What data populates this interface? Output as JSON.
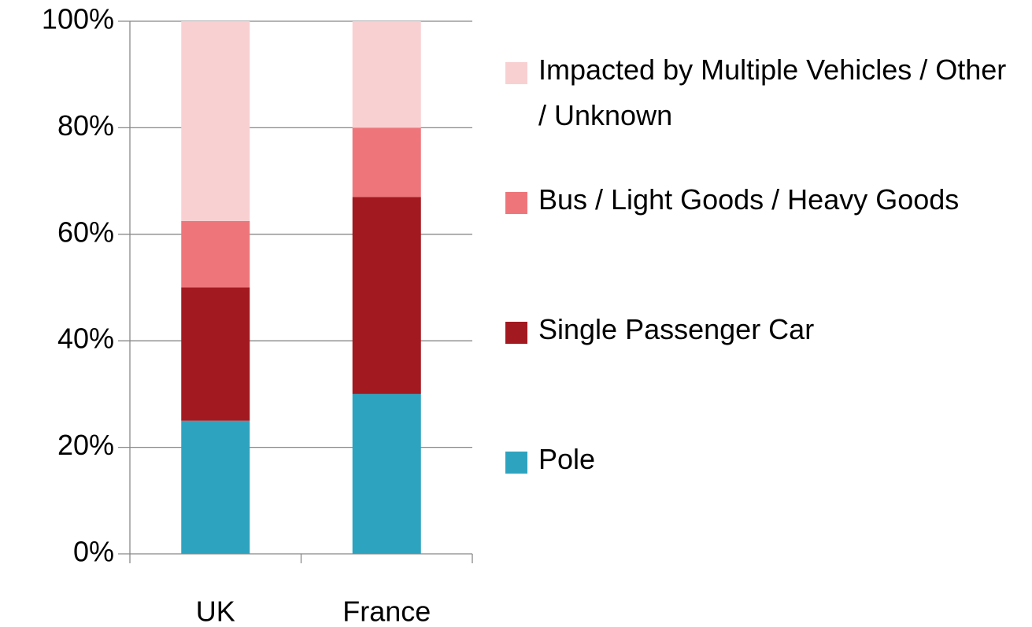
{
  "chart_data": {
    "type": "stacked_bar",
    "categories": [
      "UK",
      "France"
    ],
    "series": [
      {
        "name": "Pole",
        "color": "#2ea3bf",
        "values": [
          25,
          30
        ]
      },
      {
        "name": "Single Passenger Car",
        "color": "#a31920",
        "values": [
          25,
          37
        ]
      },
      {
        "name": "Bus / Light Goods / Heavy Goods",
        "color": "#ee767b",
        "values": [
          12.5,
          13
        ]
      },
      {
        "name": "Impacted by Multiple Vehicles / Other / Unknown",
        "color": "#f9d0d2",
        "values": [
          37.5,
          20
        ]
      }
    ],
    "ylim": [
      0,
      100
    ],
    "yticks": [
      {
        "value": 0,
        "label": "0%"
      },
      {
        "value": 20,
        "label": "20%"
      },
      {
        "value": 40,
        "label": "40%"
      },
      {
        "value": 60,
        "label": "60%"
      },
      {
        "value": 80,
        "label": "80%"
      },
      {
        "value": 100,
        "label": "100%"
      }
    ],
    "grid": true,
    "legend": "right"
  }
}
